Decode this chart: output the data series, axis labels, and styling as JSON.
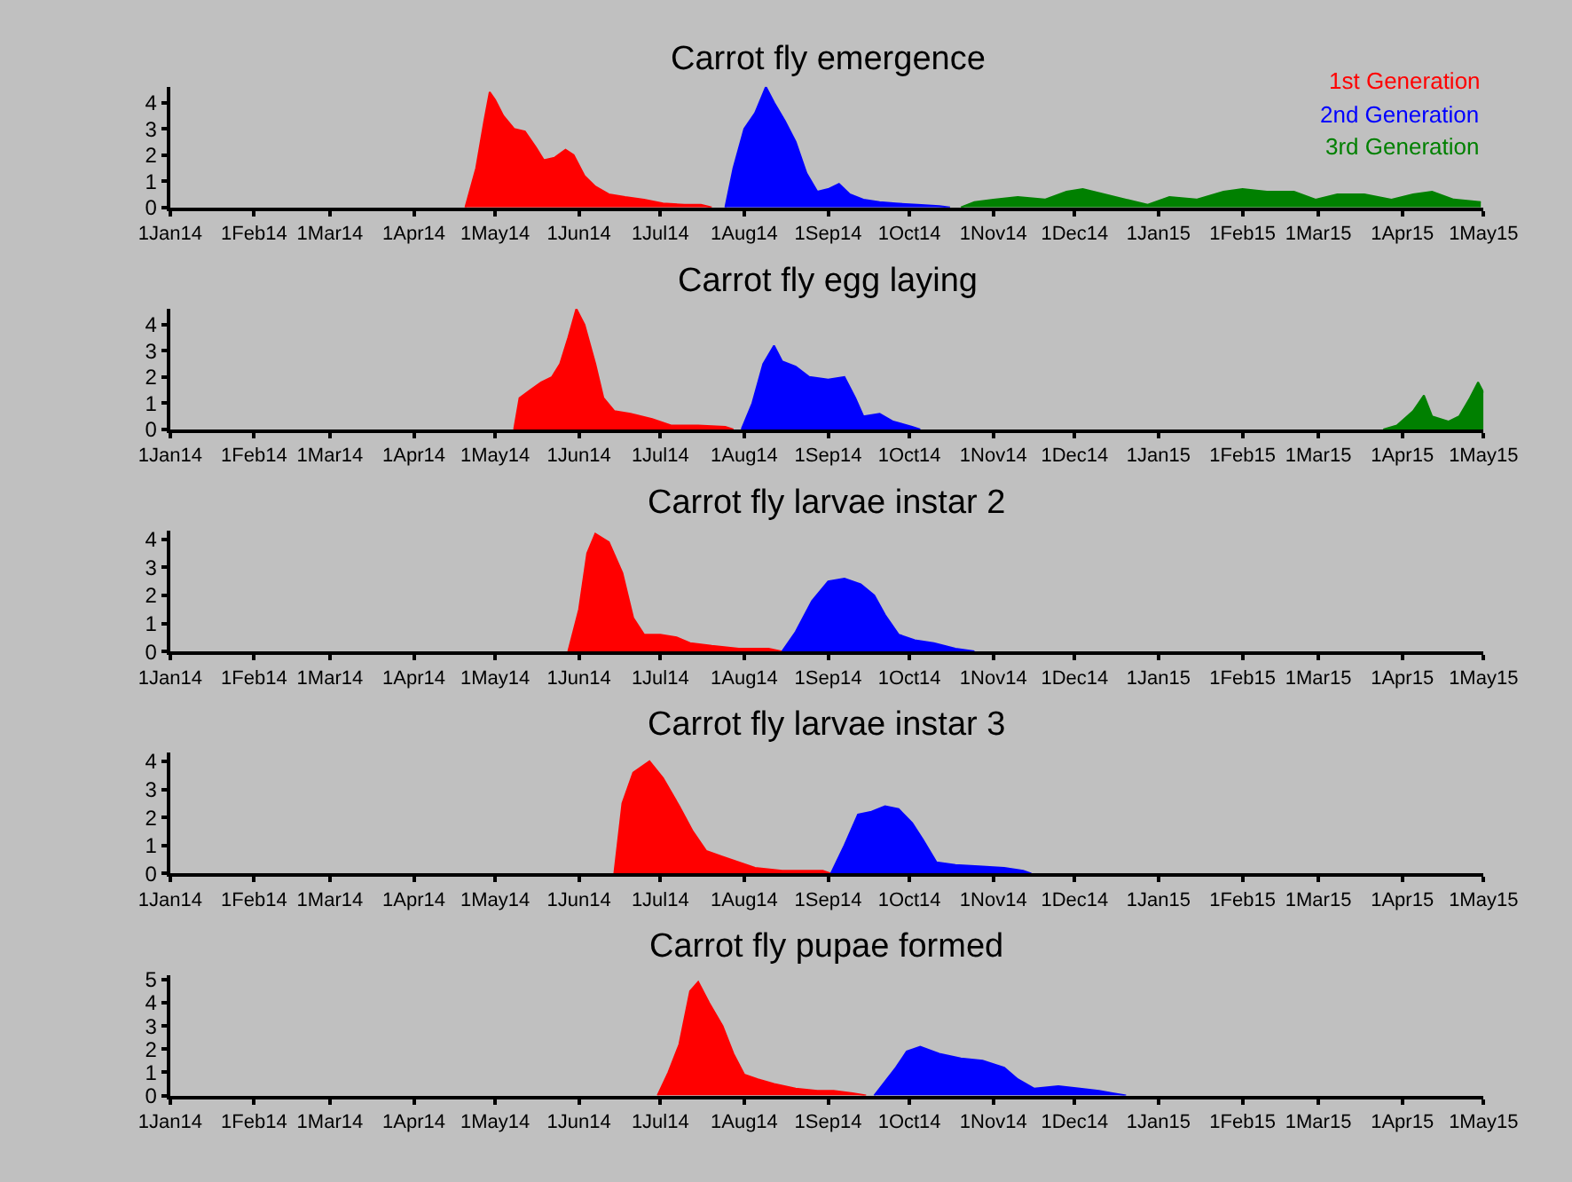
{
  "chart_data": [
    {
      "type": "area",
      "title": "Carrot fly emergence",
      "legend": "top right",
      "grid": false,
      "xlim": [
        "2014-01-01",
        "2015-05-01"
      ],
      "ylim": [
        0,
        4.6
      ],
      "yticks": [
        0,
        1,
        2,
        3,
        4
      ],
      "xticks": [
        {
          "value": "2014-01-01",
          "label": "1Jan14"
        },
        {
          "value": "2014-02-01",
          "label": "1Feb14"
        },
        {
          "value": "2014-03-01",
          "label": "1Mar14"
        },
        {
          "value": "2014-04-01",
          "label": "1Apr14"
        },
        {
          "value": "2014-05-01",
          "label": "1May14"
        },
        {
          "value": "2014-06-01",
          "label": "1Jun14"
        },
        {
          "value": "2014-07-01",
          "label": "1Jul14"
        },
        {
          "value": "2014-08-01",
          "label": "1Aug14"
        },
        {
          "value": "2014-09-01",
          "label": "1Sep14"
        },
        {
          "value": "2014-10-01",
          "label": "1Oct14"
        },
        {
          "value": "2014-11-01",
          "label": "1Nov14"
        },
        {
          "value": "2014-12-01",
          "label": "1Dec14"
        },
        {
          "value": "2015-01-01",
          "label": "1Jan15"
        },
        {
          "value": "2015-02-01",
          "label": "1Feb15"
        },
        {
          "value": "2015-03-01",
          "label": "1Mar15"
        },
        {
          "value": "2015-04-01",
          "label": "1Apr15"
        },
        {
          "value": "2015-05-01",
          "label": "1May15"
        }
      ],
      "series": [
        {
          "name": "1st Generation",
          "color": "#ff0000",
          "x": [
            "2014-04-20",
            "2014-04-24",
            "2014-04-27",
            "2014-04-29",
            "2014-05-01",
            "2014-05-04",
            "2014-05-08",
            "2014-05-12",
            "2014-05-16",
            "2014-05-19",
            "2014-05-23",
            "2014-05-27",
            "2014-05-30",
            "2014-06-03",
            "2014-06-07",
            "2014-06-12",
            "2014-06-18",
            "2014-06-25",
            "2014-07-02",
            "2014-07-10",
            "2014-07-16",
            "2014-07-20"
          ],
          "values": [
            0,
            1.5,
            3.3,
            4.4,
            4.1,
            3.5,
            3.0,
            2.9,
            2.3,
            1.8,
            1.9,
            2.2,
            2.0,
            1.2,
            0.8,
            0.5,
            0.4,
            0.3,
            0.15,
            0.1,
            0.1,
            0
          ]
        },
        {
          "name": "2nd Generation",
          "color": "#0000ff",
          "x": [
            "2014-07-25",
            "2014-07-28",
            "2014-08-01",
            "2014-08-05",
            "2014-08-09",
            "2014-08-12",
            "2014-08-16",
            "2014-08-20",
            "2014-08-24",
            "2014-08-28",
            "2014-09-01",
            "2014-09-05",
            "2014-09-09",
            "2014-09-14",
            "2014-09-20",
            "2014-09-26",
            "2014-10-04",
            "2014-10-12",
            "2014-10-16"
          ],
          "values": [
            0,
            1.5,
            3.0,
            3.6,
            4.6,
            4.0,
            3.3,
            2.5,
            1.3,
            0.6,
            0.7,
            0.9,
            0.5,
            0.3,
            0.2,
            0.15,
            0.1,
            0.05,
            0
          ]
        },
        {
          "name": "3rd Generation",
          "color": "#008000",
          "x": [
            "2014-10-20",
            "2014-10-25",
            "2014-11-01",
            "2014-11-10",
            "2014-11-20",
            "2014-11-28",
            "2014-12-04",
            "2014-12-12",
            "2014-12-20",
            "2014-12-28",
            "2015-01-05",
            "2015-01-15",
            "2015-01-25",
            "2015-02-01",
            "2015-02-10",
            "2015-02-20",
            "2015-02-28",
            "2015-03-08",
            "2015-03-18",
            "2015-03-28",
            "2015-04-05",
            "2015-04-12",
            "2015-04-20",
            "2015-04-30"
          ],
          "values": [
            0,
            0.2,
            0.3,
            0.4,
            0.3,
            0.6,
            0.7,
            0.5,
            0.3,
            0.1,
            0.4,
            0.3,
            0.6,
            0.7,
            0.6,
            0.6,
            0.3,
            0.5,
            0.5,
            0.3,
            0.5,
            0.6,
            0.3,
            0.2
          ]
        }
      ]
    },
    {
      "type": "area",
      "title": "Carrot fly egg laying",
      "grid": false,
      "xlim": [
        "2014-01-01",
        "2015-05-01"
      ],
      "ylim": [
        0,
        4.6
      ],
      "yticks": [
        0,
        1,
        2,
        3,
        4
      ],
      "xticks": [
        {
          "value": "2014-01-01",
          "label": "1Jan14"
        },
        {
          "value": "2014-02-01",
          "label": "1Feb14"
        },
        {
          "value": "2014-03-01",
          "label": "1Mar14"
        },
        {
          "value": "2014-04-01",
          "label": "1Apr14"
        },
        {
          "value": "2014-05-01",
          "label": "1May14"
        },
        {
          "value": "2014-06-01",
          "label": "1Jun14"
        },
        {
          "value": "2014-07-01",
          "label": "1Jul14"
        },
        {
          "value": "2014-08-01",
          "label": "1Aug14"
        },
        {
          "value": "2014-09-01",
          "label": "1Sep14"
        },
        {
          "value": "2014-10-01",
          "label": "1Oct14"
        },
        {
          "value": "2014-11-01",
          "label": "1Nov14"
        },
        {
          "value": "2014-12-01",
          "label": "1Dec14"
        },
        {
          "value": "2015-01-01",
          "label": "1Jan15"
        },
        {
          "value": "2015-02-01",
          "label": "1Feb15"
        },
        {
          "value": "2015-03-01",
          "label": "1Mar15"
        },
        {
          "value": "2015-04-01",
          "label": "1Apr15"
        },
        {
          "value": "2015-05-01",
          "label": "1May15"
        }
      ],
      "series": [
        {
          "color": "#ff0000",
          "x": [
            "2014-05-08",
            "2014-05-10",
            "2014-05-14",
            "2014-05-18",
            "2014-05-22",
            "2014-05-25",
            "2014-05-28",
            "2014-05-31",
            "2014-06-03",
            "2014-06-07",
            "2014-06-10",
            "2014-06-14",
            "2014-06-20",
            "2014-06-28",
            "2014-07-05",
            "2014-07-15",
            "2014-07-25",
            "2014-07-28"
          ],
          "values": [
            0,
            1.2,
            1.5,
            1.8,
            2.0,
            2.5,
            3.5,
            4.6,
            4.0,
            2.5,
            1.2,
            0.7,
            0.6,
            0.4,
            0.15,
            0.15,
            0.1,
            0
          ]
        },
        {
          "color": "#0000ff",
          "x": [
            "2014-07-31",
            "2014-08-04",
            "2014-08-08",
            "2014-08-12",
            "2014-08-15",
            "2014-08-20",
            "2014-08-25",
            "2014-09-01",
            "2014-09-07",
            "2014-09-11",
            "2014-09-14",
            "2014-09-20",
            "2014-09-25",
            "2014-10-02",
            "2014-10-05"
          ],
          "values": [
            0,
            1.0,
            2.5,
            3.2,
            2.6,
            2.4,
            2.0,
            1.9,
            2.0,
            1.2,
            0.5,
            0.6,
            0.3,
            0.1,
            0
          ]
        },
        {
          "color": "#008000",
          "x": [
            "2015-03-25",
            "2015-03-30",
            "2015-04-05",
            "2015-04-09",
            "2015-04-12",
            "2015-04-18",
            "2015-04-22",
            "2015-04-26",
            "2015-04-29",
            "2015-05-01"
          ],
          "values": [
            0,
            0.15,
            0.7,
            1.3,
            0.5,
            0.3,
            0.5,
            1.2,
            1.8,
            1.4
          ]
        }
      ]
    },
    {
      "type": "area",
      "title": "Carrot fly larvae instar 2",
      "grid": false,
      "xlim": [
        "2014-01-01",
        "2015-05-01"
      ],
      "ylim": [
        0,
        4.3
      ],
      "yticks": [
        0,
        1,
        2,
        3,
        4
      ],
      "xticks": [
        {
          "value": "2014-01-01",
          "label": "1Jan14"
        },
        {
          "value": "2014-02-01",
          "label": "1Feb14"
        },
        {
          "value": "2014-03-01",
          "label": "1Mar14"
        },
        {
          "value": "2014-04-01",
          "label": "1Apr14"
        },
        {
          "value": "2014-05-01",
          "label": "1May14"
        },
        {
          "value": "2014-06-01",
          "label": "1Jun14"
        },
        {
          "value": "2014-07-01",
          "label": "1Jul14"
        },
        {
          "value": "2014-08-01",
          "label": "1Aug14"
        },
        {
          "value": "2014-09-01",
          "label": "1Sep14"
        },
        {
          "value": "2014-10-01",
          "label": "1Oct14"
        },
        {
          "value": "2014-11-01",
          "label": "1Nov14"
        },
        {
          "value": "2014-12-01",
          "label": "1Dec14"
        },
        {
          "value": "2015-01-01",
          "label": "1Jan15"
        },
        {
          "value": "2015-02-01",
          "label": "1Feb15"
        },
        {
          "value": "2015-03-01",
          "label": "1Mar15"
        },
        {
          "value": "2015-04-01",
          "label": "1Apr15"
        },
        {
          "value": "2015-05-01",
          "label": "1May15"
        }
      ],
      "series": [
        {
          "color": "#ff0000",
          "x": [
            "2014-05-28",
            "2014-06-01",
            "2014-06-04",
            "2014-06-07",
            "2014-06-12",
            "2014-06-17",
            "2014-06-21",
            "2014-06-25",
            "2014-07-01",
            "2014-07-07",
            "2014-07-12",
            "2014-07-20",
            "2014-07-30",
            "2014-08-10",
            "2014-08-15"
          ],
          "values": [
            0,
            1.5,
            3.5,
            4.2,
            3.9,
            2.8,
            1.2,
            0.6,
            0.6,
            0.5,
            0.3,
            0.2,
            0.1,
            0.1,
            0
          ]
        },
        {
          "color": "#0000ff",
          "x": [
            "2014-08-15",
            "2014-08-20",
            "2014-08-26",
            "2014-09-01",
            "2014-09-07",
            "2014-09-13",
            "2014-09-18",
            "2014-09-22",
            "2014-09-27",
            "2014-10-03",
            "2014-10-10",
            "2014-10-18",
            "2014-10-25"
          ],
          "values": [
            0,
            0.7,
            1.8,
            2.5,
            2.6,
            2.4,
            2.0,
            1.3,
            0.6,
            0.4,
            0.3,
            0.1,
            0
          ]
        }
      ]
    },
    {
      "type": "area",
      "title": "Carrot fly larvae instar 3",
      "grid": false,
      "xlim": [
        "2014-01-01",
        "2015-05-01"
      ],
      "ylim": [
        0,
        4.3
      ],
      "yticks": [
        0,
        1,
        2,
        3,
        4
      ],
      "xticks": [
        {
          "value": "2014-01-01",
          "label": "1Jan14"
        },
        {
          "value": "2014-02-01",
          "label": "1Feb14"
        },
        {
          "value": "2014-03-01",
          "label": "1Mar14"
        },
        {
          "value": "2014-04-01",
          "label": "1Apr14"
        },
        {
          "value": "2014-05-01",
          "label": "1May14"
        },
        {
          "value": "2014-06-01",
          "label": "1Jun14"
        },
        {
          "value": "2014-07-01",
          "label": "1Jul14"
        },
        {
          "value": "2014-08-01",
          "label": "1Aug14"
        },
        {
          "value": "2014-09-01",
          "label": "1Sep14"
        },
        {
          "value": "2014-10-01",
          "label": "1Oct14"
        },
        {
          "value": "2014-11-01",
          "label": "1Nov14"
        },
        {
          "value": "2014-12-01",
          "label": "1Dec14"
        },
        {
          "value": "2015-01-01",
          "label": "1Jan15"
        },
        {
          "value": "2015-02-01",
          "label": "1Feb15"
        },
        {
          "value": "2015-03-01",
          "label": "1Mar15"
        },
        {
          "value": "2015-04-01",
          "label": "1Apr15"
        },
        {
          "value": "2015-05-01",
          "label": "1May15"
        }
      ],
      "series": [
        {
          "color": "#ff0000",
          "x": [
            "2014-06-14",
            "2014-06-17",
            "2014-06-21",
            "2014-06-27",
            "2014-07-02",
            "2014-07-08",
            "2014-07-13",
            "2014-07-18",
            "2014-07-24",
            "2014-07-30",
            "2014-08-05",
            "2014-08-15",
            "2014-08-30",
            "2014-09-02"
          ],
          "values": [
            0,
            2.5,
            3.6,
            4.0,
            3.4,
            2.4,
            1.5,
            0.8,
            0.6,
            0.4,
            0.2,
            0.1,
            0.1,
            0
          ]
        },
        {
          "color": "#0000ff",
          "x": [
            "2014-09-02",
            "2014-09-07",
            "2014-09-12",
            "2014-09-17",
            "2014-09-22",
            "2014-09-27",
            "2014-10-02",
            "2014-10-06",
            "2014-10-11",
            "2014-10-18",
            "2014-10-28",
            "2014-11-05",
            "2014-11-12",
            "2014-11-15"
          ],
          "values": [
            0,
            1.0,
            2.1,
            2.2,
            2.4,
            2.3,
            1.8,
            1.2,
            0.4,
            0.3,
            0.25,
            0.2,
            0.1,
            0
          ]
        }
      ]
    },
    {
      "type": "area",
      "title": "Carrot fly pupae formed",
      "grid": false,
      "xlim": [
        "2014-01-01",
        "2015-05-01"
      ],
      "ylim": [
        0,
        5.2
      ],
      "yticks": [
        0,
        1,
        2,
        3,
        4,
        5
      ],
      "xticks": [
        {
          "value": "2014-01-01",
          "label": "1Jan14"
        },
        {
          "value": "2014-02-01",
          "label": "1Feb14"
        },
        {
          "value": "2014-03-01",
          "label": "1Mar14"
        },
        {
          "value": "2014-04-01",
          "label": "1Apr14"
        },
        {
          "value": "2014-05-01",
          "label": "1May14"
        },
        {
          "value": "2014-06-01",
          "label": "1Jun14"
        },
        {
          "value": "2014-07-01",
          "label": "1Jul14"
        },
        {
          "value": "2014-08-01",
          "label": "1Aug14"
        },
        {
          "value": "2014-09-01",
          "label": "1Sep14"
        },
        {
          "value": "2014-10-01",
          "label": "1Oct14"
        },
        {
          "value": "2014-11-01",
          "label": "1Nov14"
        },
        {
          "value": "2014-12-01",
          "label": "1Dec14"
        },
        {
          "value": "2015-01-01",
          "label": "1Jan15"
        },
        {
          "value": "2015-02-01",
          "label": "1Feb15"
        },
        {
          "value": "2015-03-01",
          "label": "1Mar15"
        },
        {
          "value": "2015-04-01",
          "label": "1Apr15"
        },
        {
          "value": "2015-05-01",
          "label": "1May15"
        }
      ],
      "series": [
        {
          "color": "#ff0000",
          "x": [
            "2014-06-30",
            "2014-07-04",
            "2014-07-08",
            "2014-07-12",
            "2014-07-15",
            "2014-07-19",
            "2014-07-24",
            "2014-07-28",
            "2014-08-01",
            "2014-08-06",
            "2014-08-12",
            "2014-08-20",
            "2014-08-28",
            "2014-09-03",
            "2014-09-10",
            "2014-09-15"
          ],
          "values": [
            0,
            1.0,
            2.2,
            4.5,
            4.9,
            4.0,
            3.0,
            1.8,
            0.9,
            0.7,
            0.5,
            0.3,
            0.2,
            0.2,
            0.1,
            0
          ]
        },
        {
          "color": "#0000ff",
          "x": [
            "2014-09-18",
            "2014-09-22",
            "2014-09-26",
            "2014-09-30",
            "2014-10-05",
            "2014-10-12",
            "2014-10-20",
            "2014-10-28",
            "2014-11-05",
            "2014-11-10",
            "2014-11-16",
            "2014-11-25",
            "2014-12-03",
            "2014-12-10",
            "2014-12-15",
            "2014-12-20"
          ],
          "values": [
            0,
            0.6,
            1.2,
            1.9,
            2.1,
            1.8,
            1.6,
            1.5,
            1.2,
            0.7,
            0.3,
            0.4,
            0.3,
            0.2,
            0.1,
            0
          ]
        }
      ]
    }
  ]
}
